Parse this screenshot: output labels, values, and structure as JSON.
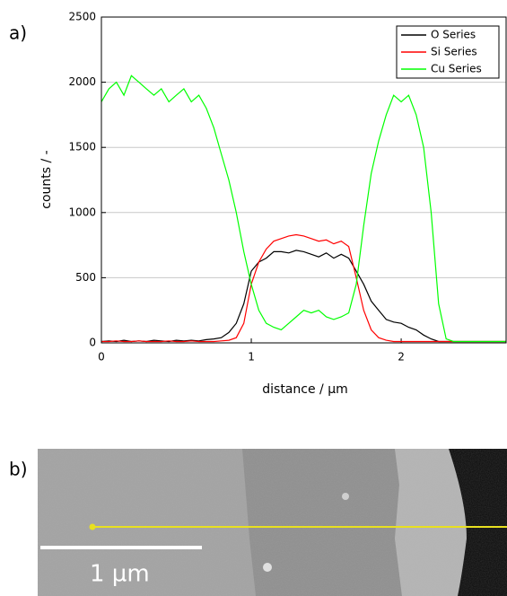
{
  "chart_data": {
    "type": "line",
    "x_label": "distance / µm",
    "y_label": "counts / -",
    "x": [
      0,
      0.05,
      0.1,
      0.15,
      0.2,
      0.25,
      0.3,
      0.35,
      0.4,
      0.45,
      0.5,
      0.55,
      0.6,
      0.65,
      0.7,
      0.75,
      0.8,
      0.85,
      0.9,
      0.95,
      1,
      1.05,
      1.1,
      1.15,
      1.2,
      1.25,
      1.3,
      1.35,
      1.4,
      1.45,
      1.5,
      1.55,
      1.6,
      1.65,
      1.7,
      1.75,
      1.8,
      1.85,
      1.9,
      1.95,
      2,
      2.05,
      2.1,
      2.15,
      2.2,
      2.25,
      2.3,
      2.35,
      2.4,
      2.45,
      2.5,
      2.55,
      2.6,
      2.65,
      2.7
    ],
    "series": [
      {
        "name": "O Series",
        "color": "#000000",
        "values": [
          10,
          15,
          10,
          20,
          10,
          15,
          10,
          20,
          15,
          10,
          20,
          15,
          20,
          15,
          25,
          30,
          40,
          80,
          150,
          300,
          550,
          620,
          650,
          700,
          700,
          690,
          710,
          700,
          680,
          660,
          690,
          650,
          680,
          650,
          550,
          450,
          320,
          250,
          180,
          160,
          150,
          120,
          100,
          60,
          30,
          10,
          10,
          10,
          10,
          10,
          10,
          10,
          10,
          10,
          10
        ]
      },
      {
        "name": "Si Series",
        "color": "#ff0000",
        "values": [
          10,
          10,
          15,
          10,
          10,
          15,
          10,
          10,
          10,
          15,
          10,
          10,
          15,
          10,
          10,
          10,
          15,
          20,
          40,
          150,
          450,
          620,
          720,
          780,
          800,
          820,
          830,
          820,
          800,
          780,
          790,
          760,
          780,
          740,
          500,
          250,
          100,
          40,
          20,
          10,
          10,
          10,
          10,
          10,
          10,
          10,
          10,
          10,
          10,
          10,
          10,
          10,
          10,
          10,
          10
        ]
      },
      {
        "name": "Cu Series",
        "color": "#00ff00",
        "values": [
          1850,
          1950,
          2000,
          1900,
          2050,
          2000,
          1950,
          1900,
          1950,
          1850,
          1900,
          1950,
          1850,
          1900,
          1800,
          1650,
          1450,
          1250,
          1000,
          700,
          450,
          250,
          150,
          120,
          100,
          150,
          200,
          250,
          230,
          250,
          200,
          180,
          200,
          230,
          450,
          900,
          1300,
          1550,
          1750,
          1900,
          1850,
          1900,
          1750,
          1500,
          1000,
          300,
          30,
          10,
          10,
          10,
          10,
          10,
          10,
          10,
          10
        ]
      }
    ],
    "xlim": [
      0,
      2.7
    ],
    "xticks": [
      0,
      1,
      2
    ],
    "ylim": [
      0,
      2500
    ],
    "yticks": [
      0,
      500,
      1000,
      1500,
      2000,
      2500
    ],
    "grid": true,
    "legend": "top-right"
  },
  "panel_labels": [
    "a)",
    "b)"
  ],
  "image": {
    "scale_bar_label": "1 µm"
  }
}
